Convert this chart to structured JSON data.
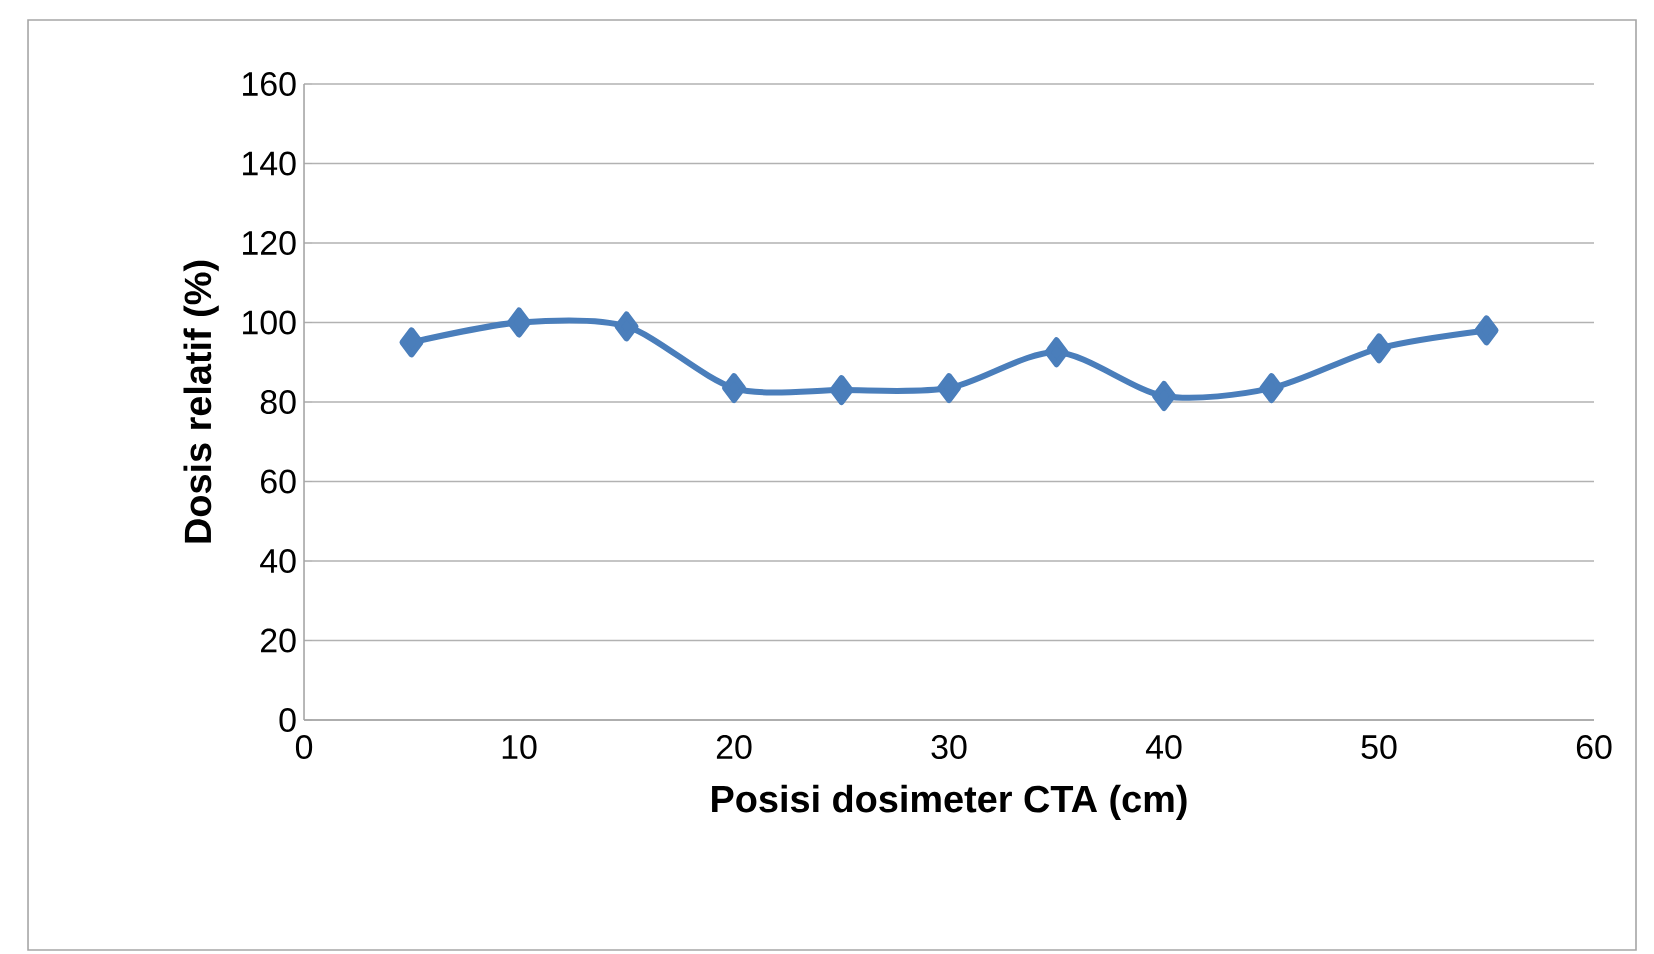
{
  "chart_data": {
    "type": "line",
    "xlabel": "Posisi dosimeter CTA (cm)",
    "ylabel": "Dosis relatif  (%)",
    "x": [
      5,
      10,
      15,
      20,
      25,
      30,
      35,
      40,
      45,
      50,
      55
    ],
    "series": [
      {
        "color": "#4a7ebb",
        "values": [
          95,
          100,
          99,
          83.5,
          83,
          83.5,
          92.5,
          81.5,
          83.5,
          93.5,
          98
        ]
      }
    ],
    "xlim": [
      0,
      60
    ],
    "xticks": [
      0,
      10,
      20,
      30,
      40,
      50,
      60
    ],
    "ylim": [
      0,
      160
    ],
    "yticks": [
      0,
      20,
      40,
      60,
      80,
      100,
      120,
      140,
      160
    ],
    "grid": "y",
    "marker": "diamond",
    "line_style": "solid"
  }
}
